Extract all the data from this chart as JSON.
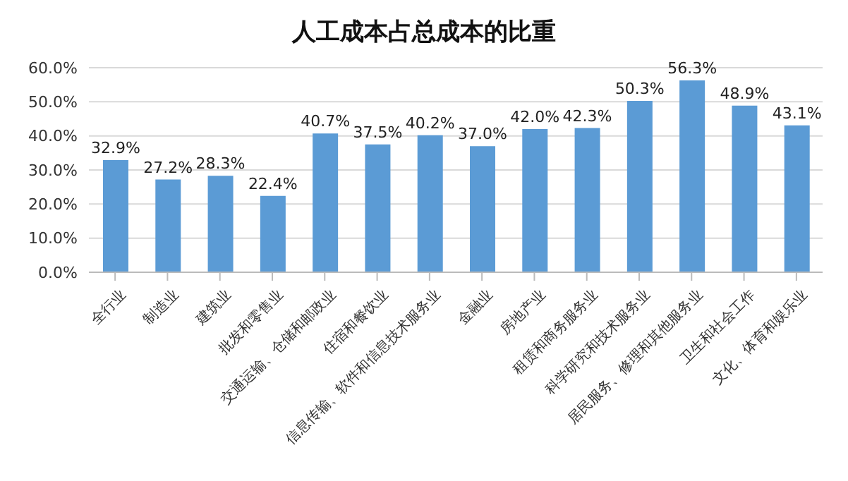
{
  "chart_data": {
    "type": "bar",
    "title": "人工成本占总成本的比重",
    "categories": [
      "全行业",
      "制造业",
      "建筑业",
      "批发和零售业",
      "交通运输、仓储和邮政业",
      "住宿和餐饮业",
      "信息传输、软件和信息技术服务业",
      "金融业",
      "房地产业",
      "租赁和商务服务业",
      "科学研究和技术服务业",
      "居民服务、修理和其他服务业",
      "卫生和社会工作",
      "文化、体育和娱乐业"
    ],
    "values": [
      32.9,
      27.2,
      28.3,
      22.4,
      40.7,
      37.5,
      40.2,
      37.0,
      42.0,
      42.3,
      50.3,
      56.3,
      48.9,
      43.1
    ],
    "value_labels": [
      "32.9%",
      "27.2%",
      "28.3%",
      "22.4%",
      "40.7%",
      "37.5%",
      "40.2%",
      "37.0%",
      "42.0%",
      "42.3%",
      "50.3%",
      "56.3%",
      "48.9%",
      "43.1%"
    ],
    "color": "#5b9bd5",
    "ylim": [
      0,
      60
    ],
    "yticks": [
      {
        "value": 0,
        "label": "0.0%"
      },
      {
        "value": 10,
        "label": "10.0%"
      },
      {
        "value": 20,
        "label": "20.0%"
      },
      {
        "value": 30,
        "label": "30.0%"
      },
      {
        "value": 40,
        "label": "40.0%"
      },
      {
        "value": 50,
        "label": "50.0%"
      },
      {
        "value": 60,
        "label": "60.0%"
      }
    ],
    "grid": "y"
  }
}
